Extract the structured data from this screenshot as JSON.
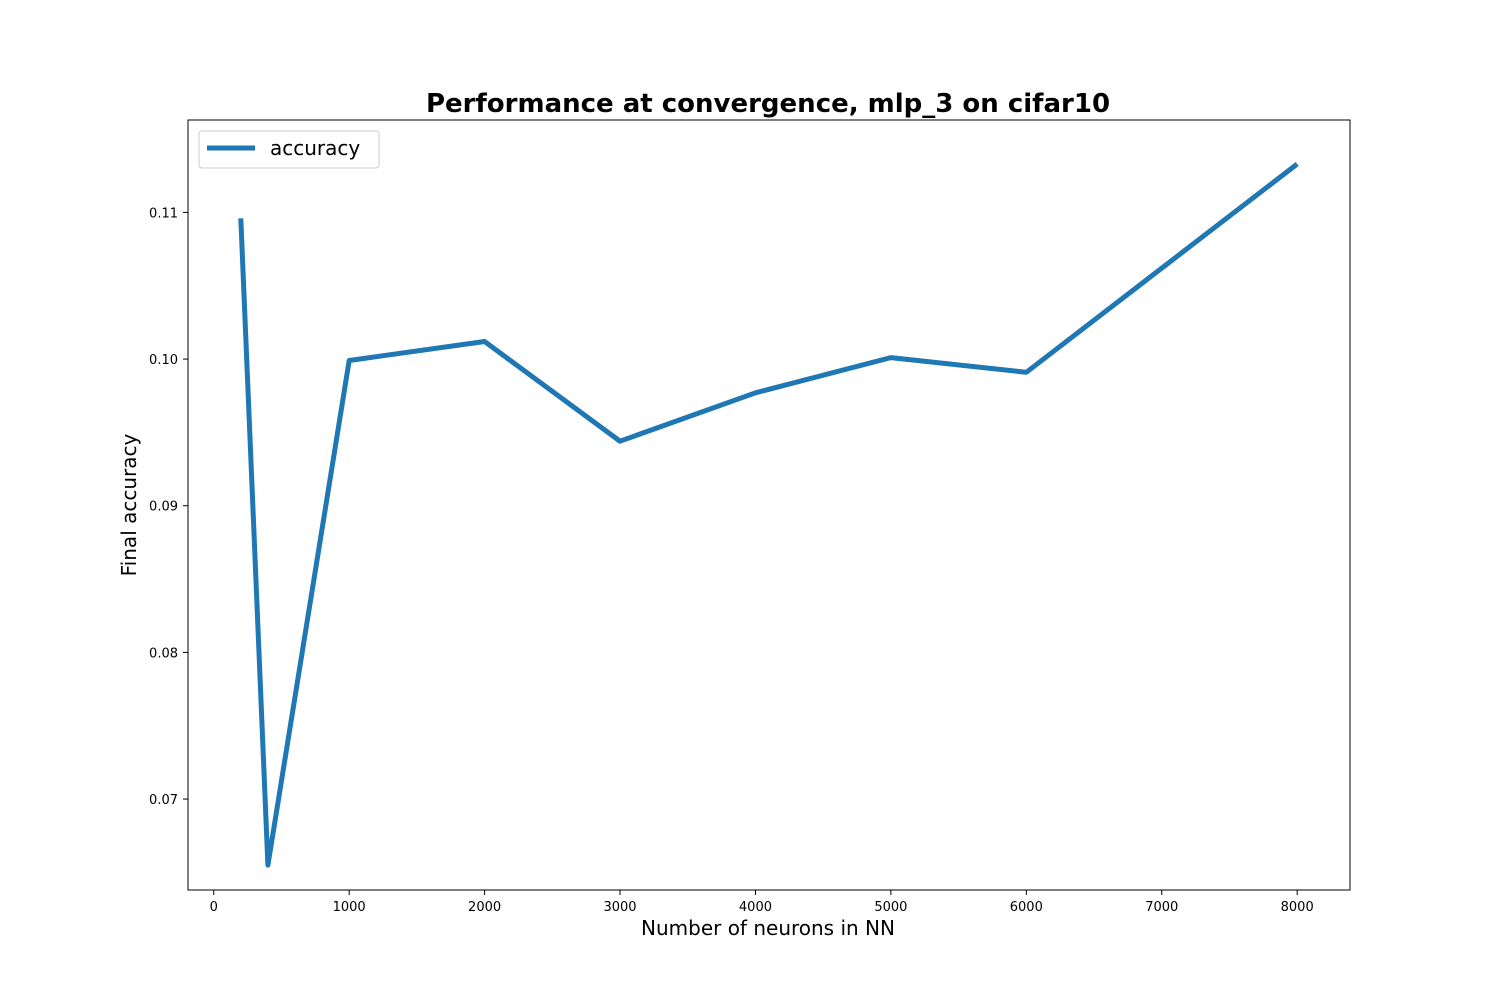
{
  "chart_data": {
    "type": "line",
    "title": "Performance at convergence, mlp_3 on cifar10",
    "xlabel": "Number of neurons in NN",
    "ylabel": "Final accuracy",
    "xlim": [
      -190,
      8390
    ],
    "ylim": [
      0.0638,
      0.1163
    ],
    "xticks": [
      0,
      1000,
      2000,
      3000,
      4000,
      5000,
      6000,
      7000,
      8000
    ],
    "yticks": [
      0.07,
      0.08,
      0.09,
      0.1,
      0.11
    ],
    "ytick_labels": [
      "0.07",
      "0.08",
      "0.09",
      "0.10",
      "0.11"
    ],
    "grid": false,
    "legend": {
      "position": "upper-left"
    },
    "series": [
      {
        "name": "accuracy",
        "color": "#1f77b4",
        "x": [
          200,
          400,
          1000,
          2000,
          3000,
          4000,
          5000,
          6000,
          8000
        ],
        "y": [
          0.1096,
          0.0655,
          0.0999,
          0.1012,
          0.0944,
          0.0977,
          0.1001,
          0.0991,
          0.1133
        ]
      }
    ]
  }
}
